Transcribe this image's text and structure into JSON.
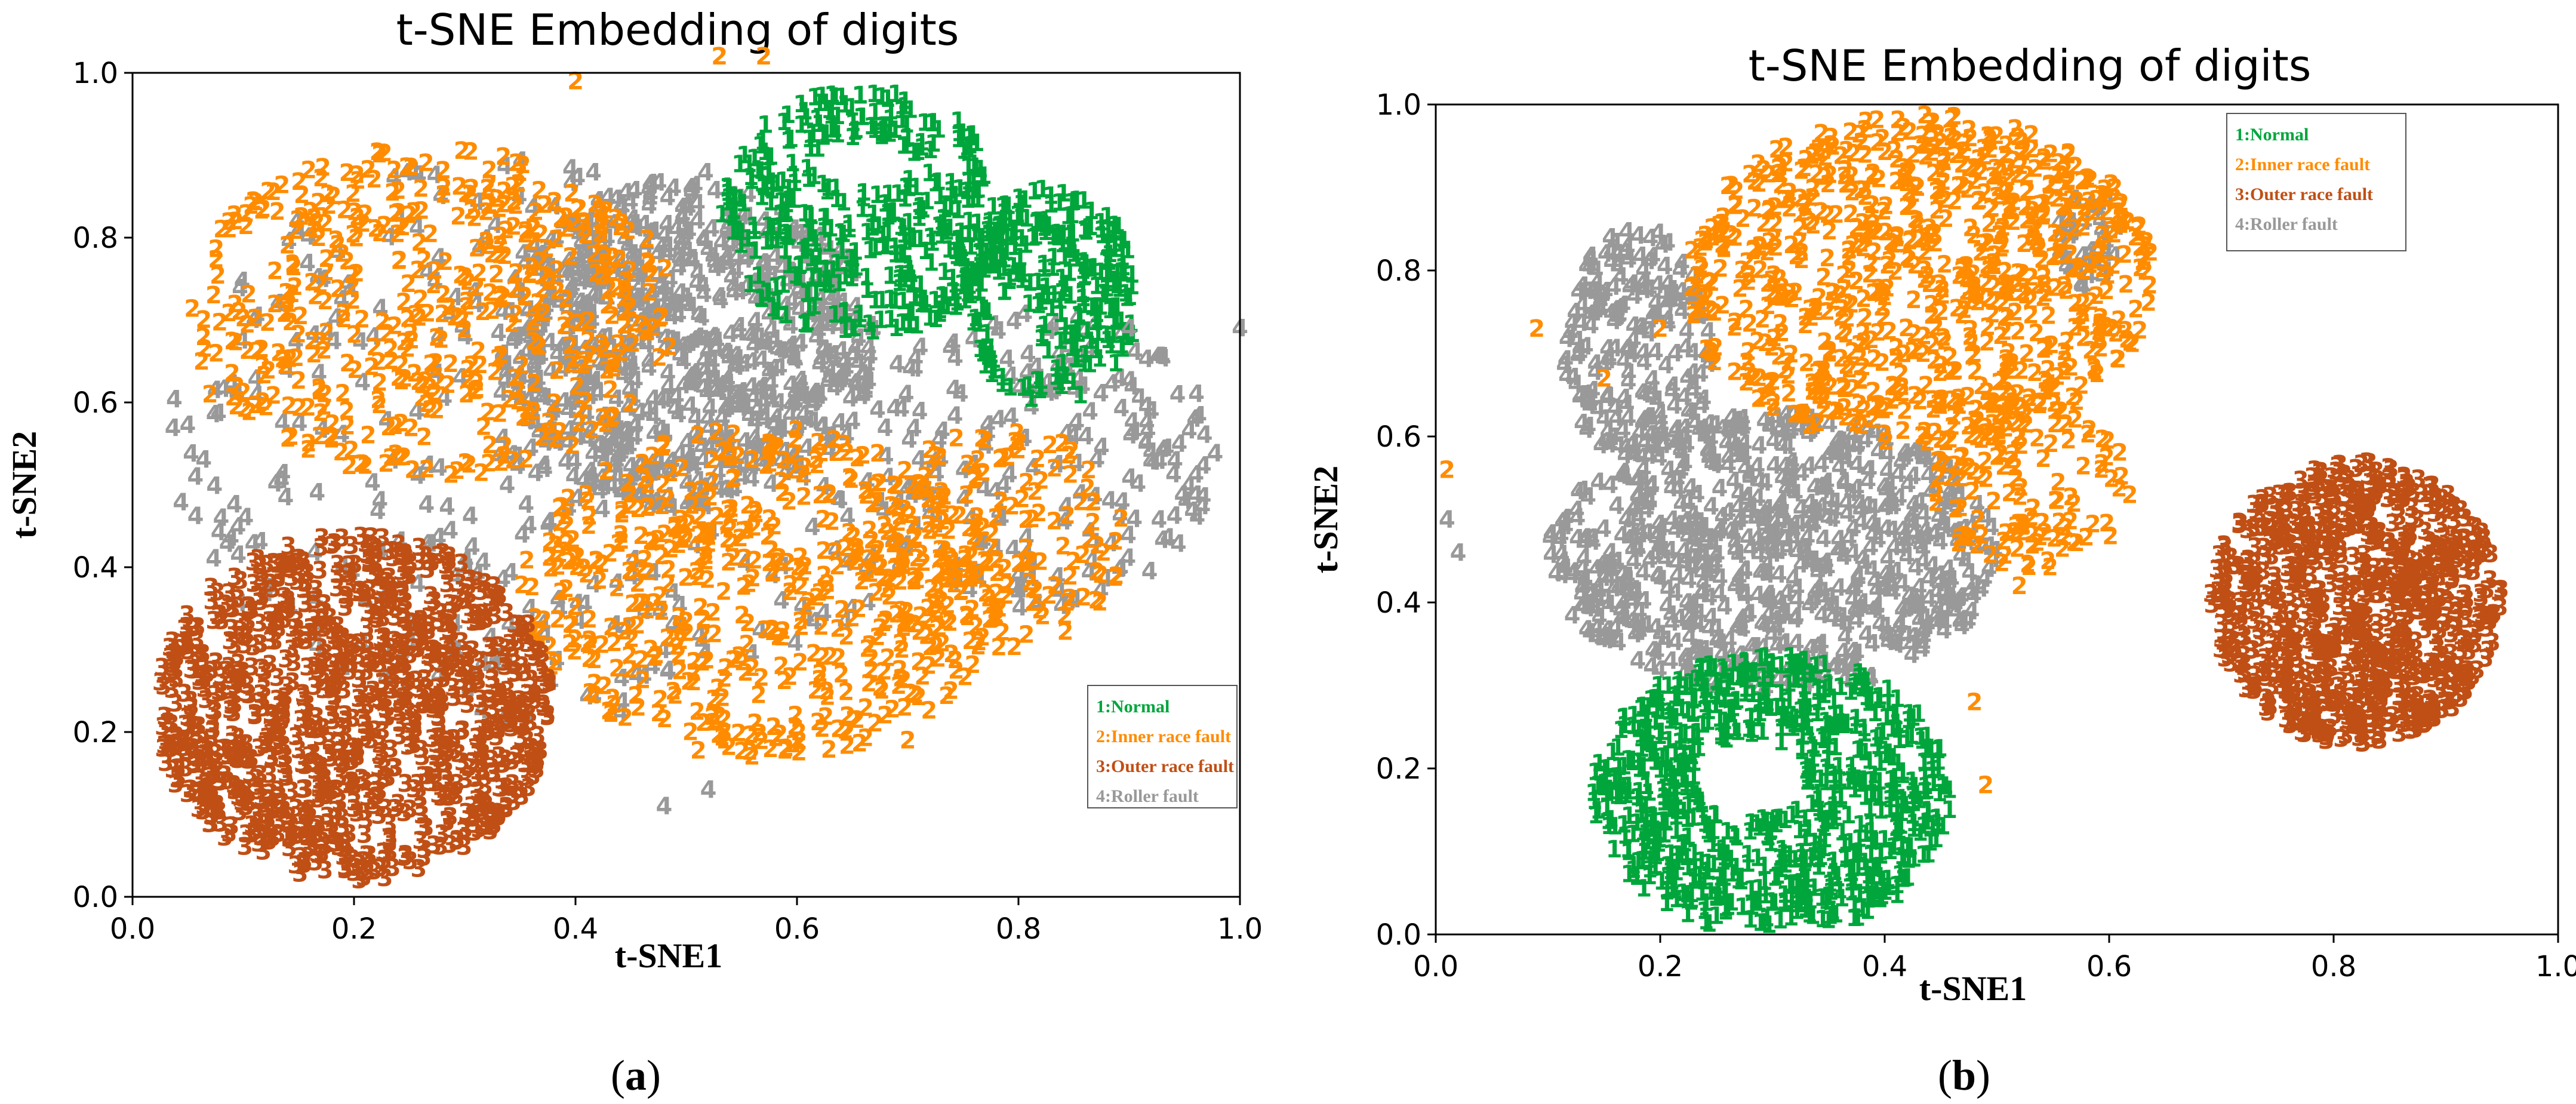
{
  "chart_data": [
    {
      "id": "a",
      "type": "scatter",
      "title": "t-SNE Embedding of digits",
      "xlabel": "t-SNE1",
      "ylabel": "t-SNE2",
      "xlim": [
        0.0,
        1.0
      ],
      "ylim": [
        0.0,
        1.0
      ],
      "xticks": [
        "0.0",
        "0.2",
        "0.4",
        "0.6",
        "0.8",
        "1.0"
      ],
      "yticks": [
        "0.0",
        "0.2",
        "0.4",
        "0.6",
        "0.8",
        "1.0"
      ],
      "legend_position": "lower-right",
      "caption": "a",
      "series": [
        {
          "name": "1:Normal",
          "glyph": "1",
          "color": "#00a63c",
          "clusters": [
            {
              "cx": 0.66,
              "cy": 0.82,
              "rx": 0.13,
              "ry": 0.15,
              "n": 420,
              "hole": [
                0.66,
                0.88,
                0.05,
                0.03
              ]
            },
            {
              "cx": 0.83,
              "cy": 0.72,
              "rx": 0.08,
              "ry": 0.13,
              "n": 260,
              "hole": [
                0.8,
                0.66,
                0.02,
                0.05
              ]
            }
          ]
        },
        {
          "name": "2:Inner race fault",
          "glyph": "2",
          "color": "#ff8c00",
          "clusters": [
            {
              "cx": 0.27,
              "cy": 0.7,
              "rx": 0.22,
              "ry": 0.2,
              "n": 480
            },
            {
              "cx": 0.57,
              "cy": 0.36,
              "rx": 0.22,
              "ry": 0.2,
              "n": 520
            },
            {
              "cx": 0.78,
              "cy": 0.42,
              "rx": 0.12,
              "ry": 0.14,
              "n": 150
            }
          ]
        },
        {
          "name": "3:Outer race fault",
          "glyph": "3",
          "color": "#c04f15",
          "clusters": [
            {
              "cx": 0.2,
              "cy": 0.22,
              "rx": 0.18,
              "ry": 0.21,
              "n": 1100
            }
          ]
        },
        {
          "name": "4:Roller fault",
          "glyph": "4",
          "color": "#999999",
          "clusters": [
            {
              "cx": 0.5,
              "cy": 0.66,
              "rx": 0.17,
              "ry": 0.2,
              "n": 700
            },
            {
              "cx": 0.38,
              "cy": 0.55,
              "rx": 0.35,
              "ry": 0.35,
              "n": 350
            },
            {
              "cx": 0.82,
              "cy": 0.52,
              "rx": 0.16,
              "ry": 0.18,
              "n": 200
            }
          ]
        }
      ],
      "annotations": [
        {
          "text": "2",
          "x": 0.53,
          "y": 1.01,
          "color": "#ff8c00"
        },
        {
          "text": "2",
          "x": 0.57,
          "y": 1.01,
          "color": "#ff8c00"
        },
        {
          "text": "2",
          "x": 0.4,
          "y": 0.98,
          "color": "#ff8c00"
        },
        {
          "text": "4",
          "x": 0.9,
          "y": 0.68,
          "color": "#999999"
        },
        {
          "text": "4",
          "x": 1.0,
          "y": 0.68,
          "color": "#999999"
        },
        {
          "text": "4",
          "x": 0.08,
          "y": 0.45,
          "color": "#999999"
        },
        {
          "text": "2",
          "x": 0.07,
          "y": 0.6,
          "color": "#ff8c00"
        },
        {
          "text": "4",
          "x": 0.48,
          "y": 0.1,
          "color": "#999999"
        },
        {
          "text": "4",
          "x": 0.52,
          "y": 0.12,
          "color": "#999999"
        },
        {
          "text": "2",
          "x": 0.7,
          "y": 0.18,
          "color": "#ff8c00"
        }
      ]
    },
    {
      "id": "b",
      "type": "scatter",
      "title": "t-SNE Embedding of digits",
      "xlabel": "t-SNE1",
      "ylabel": "t-SNE2",
      "xlim": [
        0.0,
        1.0
      ],
      "ylim": [
        0.0,
        1.0
      ],
      "xticks": [
        "0.0",
        "0.2",
        "0.4",
        "0.6",
        "0.8",
        "1.0"
      ],
      "yticks": [
        "0.0",
        "0.2",
        "0.4",
        "0.6",
        "0.8",
        "1.0"
      ],
      "legend_position": "top-right",
      "caption": "b",
      "series": [
        {
          "name": "1:Normal",
          "glyph": "1",
          "color": "#00a63c",
          "clusters": [
            {
              "cx": 0.3,
              "cy": 0.16,
              "rx": 0.16,
              "ry": 0.17,
              "n": 800,
              "hole": [
                0.28,
                0.18,
                0.05,
                0.05
              ]
            }
          ]
        },
        {
          "name": "2:Inner race fault",
          "glyph": "2",
          "color": "#ff8c00",
          "clusters": [
            {
              "cx": 0.43,
              "cy": 0.78,
              "rx": 0.21,
              "ry": 0.2,
              "n": 800
            },
            {
              "cx": 0.53,
              "cy": 0.53,
              "rx": 0.09,
              "ry": 0.1,
              "n": 120
            }
          ]
        },
        {
          "name": "3:Outer race fault",
          "glyph": "3",
          "color": "#c04f15",
          "clusters": [
            {
              "cx": 0.82,
              "cy": 0.39,
              "rx": 0.13,
              "ry": 0.17,
              "n": 900
            }
          ]
        },
        {
          "name": "4:Roller fault",
          "glyph": "4",
          "color": "#999999",
          "clusters": [
            {
              "cx": 0.3,
              "cy": 0.45,
              "rx": 0.2,
              "ry": 0.17,
              "n": 800
            },
            {
              "cx": 0.18,
              "cy": 0.7,
              "rx": 0.07,
              "ry": 0.14,
              "n": 200
            },
            {
              "cx": 0.58,
              "cy": 0.83,
              "rx": 0.03,
              "ry": 0.06,
              "n": 40
            }
          ]
        }
      ],
      "annotations": [
        {
          "text": "2",
          "x": 0.01,
          "y": 0.55,
          "color": "#ff8c00"
        },
        {
          "text": "2",
          "x": 0.09,
          "y": 0.72,
          "color": "#ff8c00"
        },
        {
          "text": "2",
          "x": 0.15,
          "y": 0.66,
          "color": "#ff8c00"
        },
        {
          "text": "2",
          "x": 0.2,
          "y": 0.72,
          "color": "#ff8c00"
        },
        {
          "text": "4",
          "x": 0.02,
          "y": 0.45,
          "color": "#999999"
        },
        {
          "text": "4",
          "x": 0.01,
          "y": 0.49,
          "color": "#999999"
        },
        {
          "text": "2",
          "x": 0.49,
          "y": 0.17,
          "color": "#ff8c00"
        },
        {
          "text": "2",
          "x": 0.48,
          "y": 0.27,
          "color": "#ff8c00"
        },
        {
          "text": "2",
          "x": 0.52,
          "y": 0.41,
          "color": "#ff8c00"
        }
      ]
    }
  ]
}
